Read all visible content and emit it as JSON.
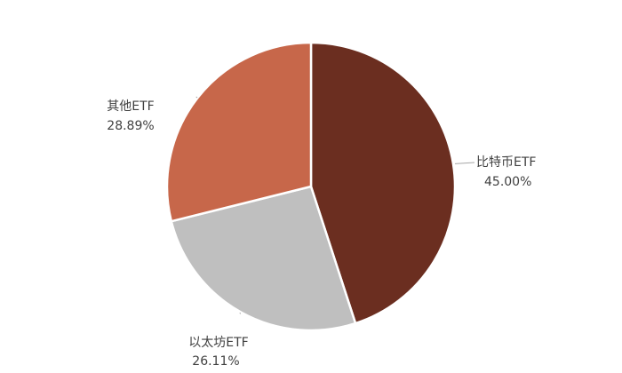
{
  "chart_data": {
    "type": "pie",
    "title": "",
    "slices": [
      {
        "label": "比特币ETF",
        "value": 45.0,
        "value_label": "45.00%",
        "color": "#6b2e20"
      },
      {
        "label": "以太坊ETF",
        "value": 26.11,
        "value_label": "26.11%",
        "color": "#bfbfbf"
      },
      {
        "label": "其他ETF",
        "value": 28.89,
        "value_label": "28.89%",
        "color": "#c7674a"
      }
    ],
    "start_angle": "12 o'clock",
    "direction": "clockwise",
    "legend": "none",
    "labels": "outside with leader lines"
  }
}
